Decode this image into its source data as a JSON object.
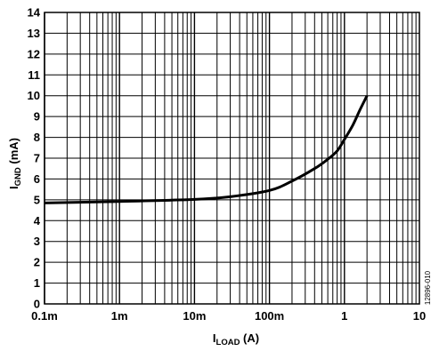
{
  "chart_data": {
    "type": "line",
    "title": "",
    "xlabel": {
      "main": "I",
      "sub": "LOAD",
      "rest": " (A)"
    },
    "ylabel": {
      "main": "I",
      "sub": "GND",
      "rest": " (mA)"
    },
    "xscale": "log",
    "xlim": [
      0.0001,
      10
    ],
    "ylim": [
      0,
      14
    ],
    "grid": true,
    "legend": "none",
    "x_ticks": [
      {
        "value": 0.0001,
        "label": "0.1m"
      },
      {
        "value": 0.001,
        "label": "1m"
      },
      {
        "value": 0.01,
        "label": "10m"
      },
      {
        "value": 0.1,
        "label": "100m"
      },
      {
        "value": 1,
        "label": "1"
      },
      {
        "value": 10,
        "label": "10"
      }
    ],
    "y_ticks": [
      0,
      1,
      2,
      3,
      4,
      5,
      6,
      7,
      8,
      9,
      10,
      11,
      12,
      13,
      14
    ],
    "series": [
      {
        "color": "#000000",
        "x": [
          0.0001,
          0.001,
          0.01,
          0.03,
          0.1,
          0.2,
          0.4,
          0.6,
          0.8,
          1,
          1.3,
          1.6,
          2
        ],
        "y": [
          4.85,
          4.92,
          5.02,
          5.15,
          5.45,
          5.9,
          6.5,
          6.95,
          7.35,
          7.9,
          8.6,
          9.3,
          10.0
        ]
      }
    ],
    "figure_code": "12896-010"
  }
}
